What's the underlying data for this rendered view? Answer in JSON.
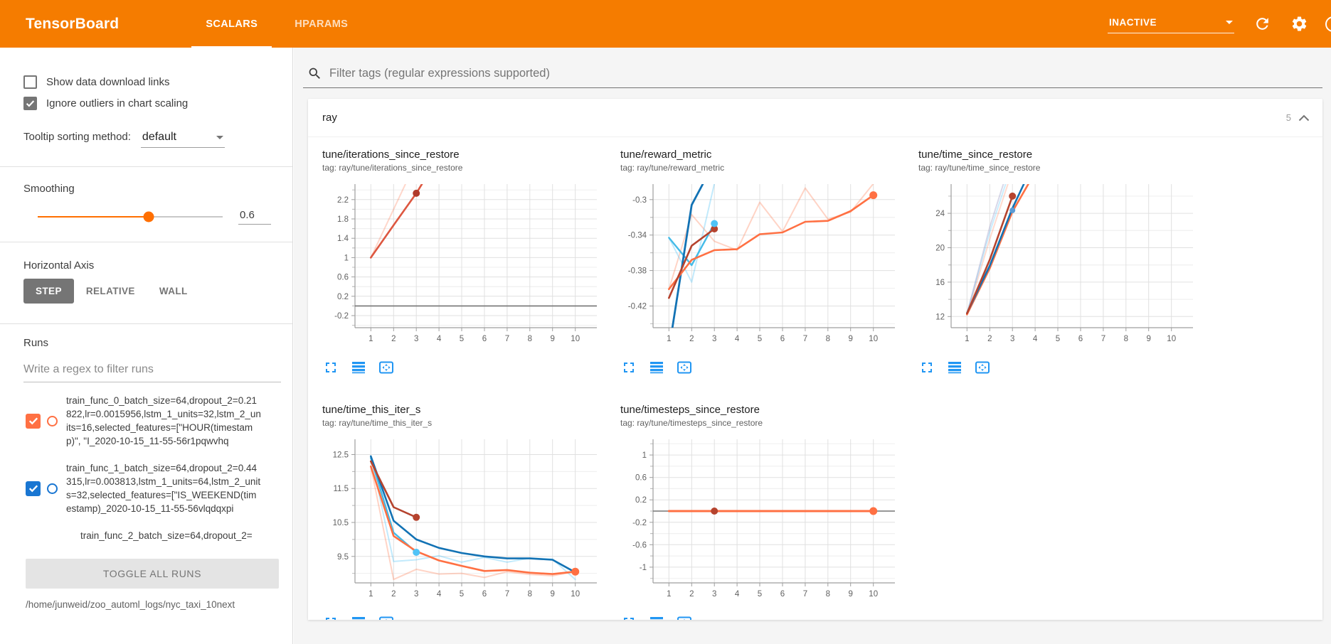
{
  "header": {
    "title": "TensorBoard",
    "tabs": [
      {
        "label": "SCALARS",
        "active": true
      },
      {
        "label": "HPARAMS",
        "active": false
      }
    ],
    "status": "INACTIVE",
    "accent_color": "#f57c00"
  },
  "sidebar": {
    "checkboxes": [
      {
        "label": "Show data download links",
        "checked": false
      },
      {
        "label": "Ignore outliers in chart scaling",
        "checked": true
      }
    ],
    "tooltip_sorting": {
      "label": "Tooltip sorting method:",
      "value": "default"
    },
    "smoothing": {
      "label": "Smoothing",
      "value": "0.6",
      "percent": 60
    },
    "horizontal_axis": {
      "label": "Horizontal Axis",
      "options": [
        "STEP",
        "RELATIVE",
        "WALL"
      ],
      "selected": "STEP"
    },
    "runs": {
      "label": "Runs",
      "filter_placeholder": "Write a regex to filter runs",
      "items": [
        {
          "name": "train_func_0_batch_size=64,dropout_2=0.21822,lr=0.0015956,lstm_1_units=32,lstm_2_units=16,selected_features=[\"HOUR(timestamp)\", \"I_2020-10-15_11-55-56r1pqwvhq",
          "color": "#ff7043",
          "checked": true,
          "partial": false
        },
        {
          "name": "train_func_1_batch_size=64,dropout_2=0.44315,lr=0.003813,lstm_1_units=64,lstm_2_units=32,selected_features=[\"IS_WEEKEND(timestamp)_2020-10-15_11-55-56vlqdqxpi",
          "color": "#1976d2",
          "checked": true,
          "partial": false
        },
        {
          "name": "train_func_2_batch_size=64,dropout_2=",
          "color": "#9e9e9e",
          "checked": false,
          "partial": true
        }
      ],
      "toggle_label": "TOGGLE ALL RUNS",
      "log_path": "/home/junweid/zoo_automl_logs/nyc_taxi_10next"
    }
  },
  "main": {
    "filter_placeholder": "Filter tags (regular expressions supported)",
    "section": {
      "name": "ray",
      "count": "5"
    }
  },
  "chart_data": [
    {
      "type": "line",
      "title": "tune/iterations_since_restore",
      "tag": "tag: ray/tune/iterations_since_restore",
      "xlabel": "step",
      "grid": true,
      "legend": "none",
      "xlim": [
        0.3,
        10.95
      ],
      "ylim": [
        -0.45,
        2.52
      ],
      "yticks": [
        -0.2,
        0.2,
        0.6,
        1,
        1.4,
        1.8,
        2.2
      ],
      "xticks": [
        1,
        2,
        3,
        4,
        5,
        6,
        7,
        8,
        9,
        10
      ],
      "series": [
        {
          "name": "zero-baseline",
          "color": "#757575",
          "width": 1.6,
          "opacity": 1,
          "points": [
            [
              0.3,
              0
            ],
            [
              10.95,
              0
            ]
          ]
        },
        {
          "name": "train_func_0 (raw)",
          "color": "#ff7043",
          "width": 2,
          "opacity": 0.28,
          "points": [
            [
              1,
              1
            ],
            [
              2,
              2
            ],
            [
              3,
              3
            ]
          ]
        },
        {
          "name": "train_func_0 (smoothed)",
          "color": "#dd5740",
          "width": 2.6,
          "opacity": 1,
          "points": [
            [
              1,
              1
            ],
            [
              2,
              1.67
            ],
            [
              3,
              2.33
            ],
            [
              3.35,
              2.6
            ]
          ]
        }
      ],
      "dots": [
        {
          "x": 3,
          "y": 2.33,
          "color": "#b03a2a",
          "r": 5
        }
      ]
    },
    {
      "type": "line",
      "title": "tune/reward_metric",
      "tag": "tag: ray/tune/reward_metric",
      "xlabel": "step",
      "grid": true,
      "legend": "none",
      "xlim": [
        0.3,
        10.95
      ],
      "ylim": [
        -0.4445,
        -0.2825
      ],
      "yticks": [
        -0.42,
        -0.38,
        -0.34,
        -0.3
      ],
      "xticks": [
        1,
        2,
        3,
        4,
        5,
        6,
        7,
        8,
        9,
        10
      ],
      "series": [
        {
          "name": "orange (raw)",
          "color": "#ff7043",
          "width": 2,
          "opacity": 0.3,
          "points": [
            [
              1,
              -0.401
            ],
            [
              2,
              -0.317
            ],
            [
              3,
              -0.347
            ],
            [
              4,
              -0.357
            ],
            [
              5,
              -0.303
            ],
            [
              6,
              -0.336
            ],
            [
              7,
              -0.287
            ],
            [
              8,
              -0.322
            ],
            [
              9,
              -0.314
            ],
            [
              10,
              -0.282
            ]
          ]
        },
        {
          "name": "lightblue (raw)",
          "color": "#4fc3f7",
          "width": 2,
          "opacity": 0.35,
          "points": [
            [
              1,
              -0.343
            ],
            [
              2,
              -0.393
            ],
            [
              3,
              -0.282
            ]
          ]
        },
        {
          "name": "lightblue (smoothed)",
          "color": "#43bbe8",
          "width": 2.4,
          "opacity": 1,
          "points": [
            [
              1,
              -0.343
            ],
            [
              2,
              -0.374
            ],
            [
              3,
              -0.327
            ]
          ]
        },
        {
          "name": "darkblue (smoothed)",
          "color": "#1272b4",
          "width": 2.8,
          "opacity": 1,
          "points": [
            [
              1.15,
              -0.445
            ],
            [
              2,
              -0.306
            ],
            [
              2.5,
              -0.282
            ]
          ]
        },
        {
          "name": "orange (smoothed)",
          "color": "#ff7043",
          "width": 2.6,
          "opacity": 1,
          "points": [
            [
              1,
              -0.401
            ],
            [
              2,
              -0.368
            ],
            [
              3,
              -0.357
            ],
            [
              4,
              -0.356
            ],
            [
              5,
              -0.339
            ],
            [
              6,
              -0.337
            ],
            [
              7,
              -0.325
            ],
            [
              8,
              -0.324
            ],
            [
              9,
              -0.313
            ],
            [
              10,
              -0.295
            ]
          ]
        },
        {
          "name": "darkred (smoothed)",
          "color": "#b5432e",
          "width": 2.6,
          "opacity": 1,
          "points": [
            [
              1,
              -0.411
            ],
            [
              2,
              -0.352
            ],
            [
              3,
              -0.333
            ]
          ]
        }
      ],
      "dots": [
        {
          "x": 3,
          "y": -0.333,
          "color": "#b5432e",
          "r": 5
        },
        {
          "x": 3,
          "y": -0.327,
          "color": "#4fc3f7",
          "r": 5
        },
        {
          "x": 10,
          "y": -0.295,
          "color": "#ff7043",
          "r": 5.5
        }
      ]
    },
    {
      "type": "line",
      "title": "tune/time_since_restore",
      "tag": "tag: ray/tune/time_since_restore",
      "xlabel": "step",
      "grid": true,
      "legend": "none",
      "xlim": [
        0.3,
        10.95
      ],
      "ylim": [
        10.7,
        27.4
      ],
      "yticks": [
        12,
        16,
        20,
        24
      ],
      "xticks": [
        1,
        2,
        3,
        4,
        5,
        6,
        7,
        8,
        9,
        10
      ],
      "series": [
        {
          "name": "pink (raw)",
          "color": "#ff7043",
          "width": 2,
          "opacity": 0.25,
          "points": [
            [
              1,
              12.2
            ],
            [
              2,
              21.0
            ],
            [
              2.8,
              27.4
            ]
          ]
        },
        {
          "name": "lightblue (raw)",
          "color": "#4fc3f7",
          "width": 2,
          "opacity": 0.3,
          "points": [
            [
              1,
              12.35
            ],
            [
              2,
              21.8
            ],
            [
              2.7,
              27.4
            ]
          ]
        },
        {
          "name": "lavender (raw)",
          "color": "#9e9ec8",
          "width": 2,
          "opacity": 0.4,
          "points": [
            [
              1,
              12.3
            ],
            [
              2,
              22.4
            ],
            [
              2.6,
              27.4
            ]
          ]
        },
        {
          "name": "orange (smoothed)",
          "color": "#ff7043",
          "width": 2.6,
          "opacity": 1,
          "points": [
            [
              1,
              12.25
            ],
            [
              2,
              17.6
            ],
            [
              3,
              24.2
            ],
            [
              3.7,
              27.4
            ]
          ]
        },
        {
          "name": "blue (smoothed)",
          "color": "#1272b4",
          "width": 2.6,
          "opacity": 1,
          "points": [
            [
              1,
              12.4
            ],
            [
              2,
              17.9
            ],
            [
              3,
              24.6
            ],
            [
              3.5,
              27.4
            ]
          ]
        },
        {
          "name": "darkred (smoothed)",
          "color": "#b5432e",
          "width": 2.6,
          "opacity": 1,
          "points": [
            [
              1,
              12.35
            ],
            [
              2,
              18.6
            ],
            [
              3,
              26.0
            ]
          ]
        }
      ],
      "dots": [
        {
          "x": 3,
          "y": 26.0,
          "color": "#b5432e",
          "r": 5
        },
        {
          "x": 3,
          "y": 24.35,
          "color": "#5b9bd5",
          "r": 4
        }
      ]
    },
    {
      "type": "line",
      "title": "tune/time_this_iter_s",
      "tag": "tag: ray/tune/time_this_iter_s",
      "xlabel": "step",
      "grid": true,
      "legend": "none",
      "xlim": [
        0.3,
        10.95
      ],
      "ylim": [
        8.72,
        12.95
      ],
      "yticks": [
        9.5,
        10.5,
        11.5,
        12.5
      ],
      "xticks": [
        1,
        2,
        3,
        4,
        5,
        6,
        7,
        8,
        9,
        10
      ],
      "series": [
        {
          "name": "pink (raw)",
          "color": "#ff7043",
          "width": 2,
          "opacity": 0.3,
          "points": [
            [
              1,
              12.15
            ],
            [
              2,
              8.82
            ],
            [
              3,
              9.12
            ],
            [
              4,
              8.98
            ],
            [
              5,
              9.0
            ],
            [
              6,
              8.88
            ],
            [
              7,
              9.05
            ],
            [
              8,
              8.97
            ],
            [
              9,
              8.93
            ],
            [
              10,
              9.05
            ]
          ]
        },
        {
          "name": "lightblue (raw)",
          "color": "#4fc3f7",
          "width": 2,
          "opacity": 0.35,
          "points": [
            [
              1,
              12.45
            ],
            [
              2,
              9.35
            ],
            [
              3,
              9.4
            ],
            [
              4,
              9.52
            ],
            [
              5,
              9.33
            ],
            [
              6,
              9.47
            ],
            [
              7,
              9.33
            ],
            [
              8,
              9.45
            ],
            [
              9,
              9.42
            ],
            [
              10,
              8.82
            ]
          ]
        },
        {
          "name": "lightblue (smoothed)",
          "color": "#43bbe8",
          "width": 2.4,
          "opacity": 1,
          "points": [
            [
              1,
              12.4
            ],
            [
              2,
              10.2
            ],
            [
              3,
              9.62
            ]
          ]
        },
        {
          "name": "orange (smoothed)",
          "color": "#ff7043",
          "width": 2.6,
          "opacity": 1,
          "points": [
            [
              1,
              12.15
            ],
            [
              2,
              10.1
            ],
            [
              3,
              9.65
            ],
            [
              4,
              9.38
            ],
            [
              5,
              9.22
            ],
            [
              6,
              9.07
            ],
            [
              7,
              9.1
            ],
            [
              8,
              9.02
            ],
            [
              9,
              8.98
            ],
            [
              10,
              9.05
            ]
          ]
        },
        {
          "name": "blue (smoothed)",
          "color": "#1272b4",
          "width": 2.6,
          "opacity": 1,
          "points": [
            [
              1,
              12.45
            ],
            [
              2,
              10.55
            ],
            [
              3,
              10.0
            ],
            [
              4,
              9.75
            ],
            [
              5,
              9.6
            ],
            [
              6,
              9.5
            ],
            [
              7,
              9.44
            ],
            [
              8,
              9.44
            ],
            [
              9,
              9.4
            ],
            [
              10,
              9.03
            ]
          ]
        },
        {
          "name": "darkred (smoothed)",
          "color": "#b5432e",
          "width": 2.6,
          "opacity": 1,
          "points": [
            [
              1,
              12.3
            ],
            [
              2,
              10.95
            ],
            [
              3,
              10.65
            ]
          ]
        }
      ],
      "dots": [
        {
          "x": 3,
          "y": 10.65,
          "color": "#b5432e",
          "r": 5
        },
        {
          "x": 3,
          "y": 9.62,
          "color": "#4fc3f7",
          "r": 5
        },
        {
          "x": 10,
          "y": 9.05,
          "color": "#ff7043",
          "r": 5.5
        }
      ]
    },
    {
      "type": "line",
      "title": "tune/timesteps_since_restore",
      "tag": "tag: ray/tune/timesteps_since_restore",
      "xlabel": "step",
      "grid": true,
      "legend": "none",
      "xlim": [
        0.3,
        10.95
      ],
      "ylim": [
        -1.28,
        1.28
      ],
      "yticks": [
        1,
        0.6,
        0.2,
        -0.2,
        -0.6,
        -1
      ],
      "xticks": [
        1,
        2,
        3,
        4,
        5,
        6,
        7,
        8,
        9,
        10
      ],
      "series": [
        {
          "name": "zero-baseline",
          "color": "#757575",
          "width": 1.6,
          "opacity": 1,
          "points": [
            [
              0.3,
              0
            ],
            [
              10.95,
              0
            ]
          ]
        },
        {
          "name": "orange (smoothed)",
          "color": "#ff7043",
          "width": 3,
          "opacity": 1,
          "points": [
            [
              1,
              0
            ],
            [
              10,
              0
            ]
          ]
        }
      ],
      "dots": [
        {
          "x": 3,
          "y": 0,
          "color": "#b5432e",
          "r": 5
        },
        {
          "x": 10,
          "y": 0,
          "color": "#ff7043",
          "r": 5.5
        }
      ]
    }
  ]
}
